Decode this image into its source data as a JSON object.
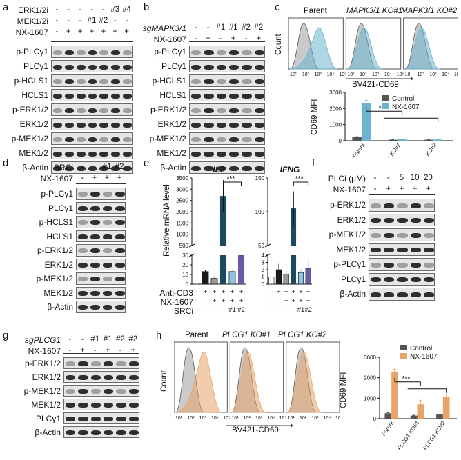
{
  "panel_labels": [
    "a",
    "b",
    "c",
    "d",
    "e",
    "f",
    "g",
    "h"
  ],
  "a": {
    "cond_rows": [
      {
        "label": "ERK1/2i",
        "marks": [
          "-",
          "-",
          "-",
          "-",
          "-",
          "#3",
          "#4"
        ]
      },
      {
        "label": "MEK1/2i",
        "marks": [
          "-",
          "-",
          "-",
          "#1",
          "#2",
          "-",
          "-"
        ]
      },
      {
        "label": "NX-1607",
        "marks": [
          "-",
          "+",
          "+",
          "+",
          "+",
          "+",
          "+"
        ]
      }
    ],
    "blots": [
      "p-PLCγ1",
      "PLCγ1",
      "p-HCLS1",
      "HCLS1",
      "p-ERK1/2",
      "ERK1/2",
      "p-MEK1/2",
      "MEK1/2",
      "β-Actin"
    ]
  },
  "b": {
    "cond_rows": [
      {
        "label": "sgMAPK3/1",
        "marks": [
          "-",
          "-",
          "#1",
          "#1",
          "#2",
          "#2"
        ]
      },
      {
        "label": "NX-1607",
        "marks": [
          "-",
          "+",
          "-",
          "+",
          "-",
          "+"
        ]
      }
    ],
    "blots": [
      "p-PLCγ1",
      "PLCγ1",
      "p-HCLS1",
      "HCLS1",
      "p-ERK1/2",
      "ERK1/2",
      "p-MEK1/2",
      "MEK1/2",
      "β-Actin"
    ]
  },
  "c": {
    "hist_titles": [
      "Parent",
      "MAPK3/1 KO#1",
      "MAPK3/1 KO#2"
    ],
    "y_label": "Count",
    "x_label": "BV421-CD69",
    "ticks": [
      "10¹",
      "10²",
      "10³",
      "10⁴",
      "10⁵"
    ],
    "colors": {
      "control": "#555555",
      "nx": "#6bb4d0"
    }
  },
  "d": {
    "cond_rows": [
      {
        "label": "SRCi",
        "marks": [
          "-",
          "-",
          "#1",
          "#2"
        ]
      },
      {
        "label": "NX-1607",
        "marks": [
          "-",
          "+",
          "+",
          "+"
        ]
      }
    ],
    "blots": [
      "p-PLCγ1",
      "PLCγ1",
      "p-HCLS1",
      "HCLS1",
      "p-ERK1/2",
      "ERK1/2",
      "p-MEK1/2",
      "MEK1/2",
      "β-Actin"
    ]
  },
  "e": {
    "y_label": "Relative mRNA level",
    "bottom_rows": [
      {
        "label": "Anti-CD3",
        "marks": [
          "-",
          "+",
          "+",
          "+",
          "+",
          "+"
        ]
      },
      {
        "label": "NX-1607",
        "marks": [
          "-",
          "-",
          "+",
          "+",
          "+",
          "+"
        ]
      },
      {
        "label": "SRCi",
        "marks": [
          "-",
          "-",
          "-",
          "-",
          "#1",
          "#2"
        ]
      }
    ],
    "sig": "***"
  },
  "f": {
    "cond_rows": [
      {
        "label": "PLCi (μM)",
        "marks": [
          "-",
          "-",
          "5",
          "10",
          "20"
        ]
      },
      {
        "label": "NX-1607",
        "marks": [
          "-",
          "+",
          "+",
          "+",
          "+"
        ]
      }
    ],
    "blots": [
      "p-ERK1/2",
      "ERK1/2",
      "p-MEK1/2",
      "MEK1/2",
      "p-PLCγ1",
      "PLCγ1",
      "β-Actin"
    ]
  },
  "g": {
    "cond_rows": [
      {
        "label": "sgPLCG1",
        "marks": [
          "-",
          "-",
          "#1",
          "#1",
          "#2",
          "#2"
        ]
      },
      {
        "label": "NX-1607",
        "marks": [
          "-",
          "+",
          "-",
          "+",
          "-",
          "+"
        ]
      }
    ],
    "blots": [
      "p-ERK1/2",
      "ERK1/2",
      "p-MEK1/2",
      "MEK1/2",
      "PLCγ1",
      "β-Actin"
    ]
  },
  "h": {
    "hist_titles": [
      "Parent",
      "PLCG1 KO#1",
      "PLCG1 KO#2"
    ],
    "y_label": "Count",
    "x_label": "BV421-CD69",
    "ticks": [
      "10¹",
      "10²",
      "10³",
      "10⁴",
      "10⁵"
    ],
    "colors": {
      "control": "#555555",
      "nx": "#e6a46a"
    }
  },
  "chart_data": [
    {
      "type": "bar",
      "panel": "c",
      "ylabel": "CD69 MFI",
      "ylim": [
        0,
        3000
      ],
      "yticks": [
        0,
        1000,
        2000,
        3000
      ],
      "categories": [
        "Parent",
        "MAPK3/1 KO#1",
        "MAPK3/1 KO#2"
      ],
      "series": [
        {
          "name": "Control",
          "color": "#555555",
          "values": [
            220,
            60,
            60
          ]
        },
        {
          "name": "NX-1607",
          "color": "#6bb4d0",
          "values": [
            2350,
            90,
            70
          ]
        }
      ],
      "errors": [
        [
          30,
          10,
          10
        ],
        [
          150,
          15,
          15
        ]
      ],
      "annotation": "***"
    },
    {
      "type": "bar",
      "panel": "e-IL2",
      "title": "IL2",
      "ylim_low": [
        0,
        30
      ],
      "ylim_high": [
        500,
        3500
      ],
      "yticks_low": [
        0,
        10,
        20,
        30
      ],
      "yticks_high": [
        500,
        1000,
        1500,
        2000,
        2500,
        3000,
        3500
      ],
      "values": [
        1,
        13,
        6,
        2700,
        13,
        45
      ],
      "colors": [
        "#ffffff",
        "#1a1a1a",
        "#9a9a9a",
        "#1b4a5e",
        "#8fc3e6",
        "#6a5aa8"
      ],
      "errors": [
        0.5,
        2,
        2,
        700,
        2,
        15
      ],
      "annotation": "***"
    },
    {
      "type": "bar",
      "panel": "e-IFNG",
      "title": "IFNG",
      "ylim_low": [
        0,
        4
      ],
      "ylim_high": [
        50,
        150
      ],
      "yticks_low": [
        0,
        1,
        2,
        3,
        4
      ],
      "yticks_high": [
        50,
        100,
        150
      ],
      "values": [
        1,
        2,
        1.4,
        105,
        1.6,
        2.2
      ],
      "colors": [
        "#ffffff",
        "#1a1a1a",
        "#9a9a9a",
        "#1b4a5e",
        "#8fc3e6",
        "#6a5aa8"
      ],
      "errors": [
        0,
        0.8,
        0.6,
        25,
        0.5,
        1.2
      ],
      "annotation": "***"
    },
    {
      "type": "bar",
      "panel": "h",
      "ylabel": "CD69 MFI",
      "ylim": [
        0,
        3000
      ],
      "yticks": [
        0,
        1000,
        2000,
        3000
      ],
      "categories": [
        "Parent",
        "PLCG1 KO#1",
        "PLCG1 KO#2"
      ],
      "series": [
        {
          "name": "Control",
          "color": "#555555",
          "values": [
            260,
            150,
            200
          ]
        },
        {
          "name": "NX-1607",
          "color": "#e6a46a",
          "values": [
            2300,
            700,
            1050
          ]
        }
      ],
      "errors": [
        [
          30,
          20,
          20
        ],
        [
          120,
          200,
          150
        ]
      ],
      "annotation": "***"
    }
  ]
}
